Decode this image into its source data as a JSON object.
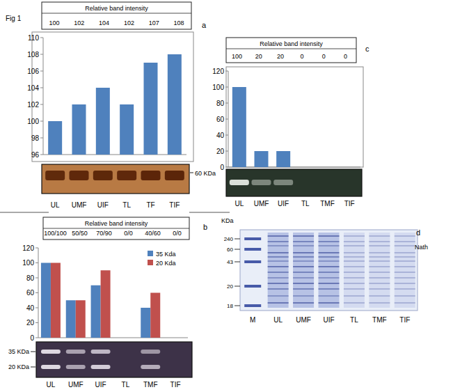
{
  "figure_label": "Fig 1",
  "chart_data": [
    {
      "type": "bar",
      "panel": "a",
      "title": "Relative band intensity",
      "annotations": [
        "100",
        "102",
        "104",
        "102",
        "107",
        "108"
      ],
      "categories": [
        "UL",
        "UMF",
        "UIF",
        "TL",
        "TF",
        "TIF"
      ],
      "values": [
        100,
        102,
        104,
        102,
        107,
        108
      ],
      "color": "#4f81bd",
      "ylim": [
        96,
        110
      ],
      "yticks": [
        96,
        98,
        100,
        102,
        104,
        106,
        108,
        110
      ],
      "band_labels": [
        "60 KDa"
      ]
    },
    {
      "type": "bar",
      "panel": "b",
      "title": "Relative band intensity",
      "annotations": [
        "100/100",
        "50/50",
        "70/90",
        "0/0",
        "40/60",
        "0/0"
      ],
      "categories": [
        "UL",
        "UMF",
        "UIF",
        "TL",
        "TMF",
        "TIF"
      ],
      "series": [
        {
          "name": "35 Kda",
          "color": "#4f81bd",
          "values": [
            100,
            50,
            70,
            0,
            40,
            0
          ]
        },
        {
          "name": "20 Kda",
          "color": "#c0504d",
          "values": [
            100,
            50,
            90,
            0,
            60,
            0
          ]
        }
      ],
      "legend": "top-right",
      "ylim": [
        0,
        120
      ],
      "yticks": [
        0,
        20,
        40,
        60,
        80,
        100,
        120
      ],
      "band_labels": [
        "35 KDa",
        "20 KDa"
      ]
    },
    {
      "type": "bar",
      "panel": "c",
      "title": "Relative band intensity",
      "annotations": [
        "100",
        "20",
        "20",
        "0",
        "0",
        "0"
      ],
      "categories": [
        "UL",
        "UMF",
        "UIF",
        "TL",
        "TMF",
        "TIF"
      ],
      "values": [
        100,
        20,
        20,
        0,
        0,
        0
      ],
      "color": "#4f81bd",
      "ylim": [
        0,
        120
      ],
      "yticks": [
        0,
        20,
        40,
        60,
        80,
        100,
        120
      ]
    }
  ],
  "gel_d": {
    "panel": "d",
    "axis_label": "KDa",
    "markers": [
      240,
      60,
      43,
      20,
      18
    ],
    "lanes": [
      "M",
      "UL",
      "UMF",
      "UIF",
      "TL",
      "TMF",
      "TIF"
    ],
    "side_label": "Nath"
  }
}
